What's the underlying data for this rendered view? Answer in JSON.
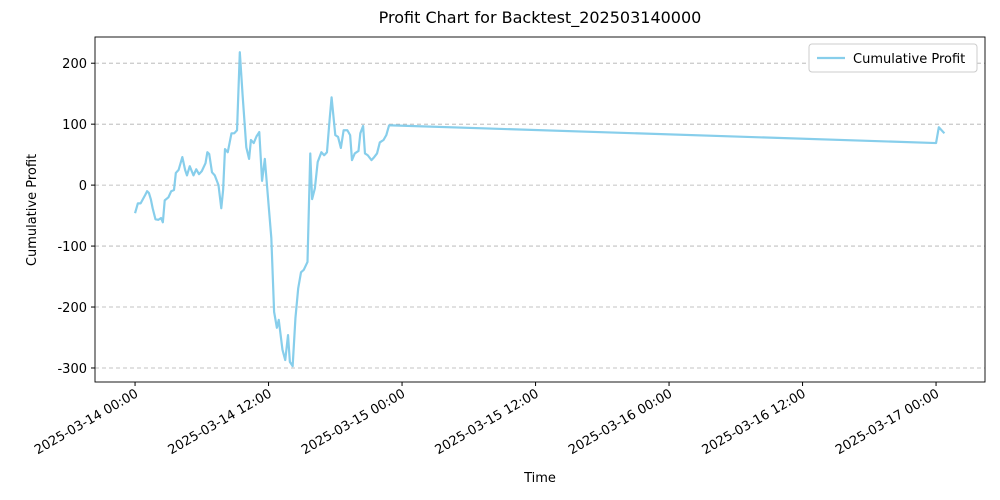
{
  "chart_data": {
    "type": "line",
    "title": "Profit Chart for Backtest_202503140000",
    "x_label": "Time",
    "y_label": "Cumulative Profit",
    "x": [
      "2025-03-14 00:00",
      "2025-03-14 00:15",
      "2025-03-14 00:30",
      "2025-03-14 00:55",
      "2025-03-14 01:05",
      "2025-03-14 01:15",
      "2025-03-14 01:25",
      "2025-03-14 01:35",
      "2025-03-14 01:50",
      "2025-03-14 02:05",
      "2025-03-14 02:20",
      "2025-03-14 02:30",
      "2025-03-14 02:40",
      "2025-03-14 03:00",
      "2025-03-14 03:15",
      "2025-03-14 03:30",
      "2025-03-14 03:40",
      "2025-03-14 03:55",
      "2025-03-14 04:15",
      "2025-03-14 04:30",
      "2025-03-14 04:40",
      "2025-03-14 04:55",
      "2025-03-14 05:15",
      "2025-03-14 05:30",
      "2025-03-14 05:45",
      "2025-03-14 06:00",
      "2025-03-14 06:20",
      "2025-03-14 06:30",
      "2025-03-14 06:40",
      "2025-03-14 06:55",
      "2025-03-14 07:10",
      "2025-03-14 07:30",
      "2025-03-14 07:45",
      "2025-03-14 07:55",
      "2025-03-14 08:05",
      "2025-03-14 08:20",
      "2025-03-14 08:40",
      "2025-03-14 08:55",
      "2025-03-14 09:10",
      "2025-03-14 09:25",
      "2025-03-14 09:40",
      "2025-03-14 10:00",
      "2025-03-14 10:15",
      "2025-03-14 10:25",
      "2025-03-14 10:40",
      "2025-03-14 10:55",
      "2025-03-14 11:10",
      "2025-03-14 11:25",
      "2025-03-14 11:40",
      "2025-03-14 11:55",
      "2025-03-14 12:15",
      "2025-03-14 12:30",
      "2025-03-14 12:45",
      "2025-03-14 12:55",
      "2025-03-14 13:15",
      "2025-03-14 13:30",
      "2025-03-14 13:45",
      "2025-03-14 13:55",
      "2025-03-14 14:10",
      "2025-03-14 14:25",
      "2025-03-14 14:40",
      "2025-03-14 14:55",
      "2025-03-14 15:10",
      "2025-03-14 15:30",
      "2025-03-14 15:45",
      "2025-03-14 15:55",
      "2025-03-14 16:10",
      "2025-03-14 16:25",
      "2025-03-14 16:45",
      "2025-03-14 17:00",
      "2025-03-14 17:15",
      "2025-03-14 17:30",
      "2025-03-14 17:40",
      "2025-03-14 18:00",
      "2025-03-14 18:15",
      "2025-03-14 18:30",
      "2025-03-14 18:45",
      "2025-03-14 19:05",
      "2025-03-14 19:20",
      "2025-03-14 19:30",
      "2025-03-14 19:45",
      "2025-03-14 20:05",
      "2025-03-14 20:15",
      "2025-03-14 20:30",
      "2025-03-14 20:40",
      "2025-03-14 20:55",
      "2025-03-14 21:15",
      "2025-03-14 21:30",
      "2025-03-14 21:45",
      "2025-03-14 22:00",
      "2025-03-14 22:20",
      "2025-03-14 22:35",
      "2025-03-14 22:50",
      "2025-03-14 23:05",
      "2025-03-17 00:00",
      "2025-03-17 00:15",
      "2025-03-17 00:45"
    ],
    "series": [
      {
        "name": "Cumulative Profit",
        "color": "#87ceeb",
        "values": [
          -46,
          -30,
          -30,
          -16,
          -10,
          -13,
          -23,
          -38,
          -56,
          -57,
          -54,
          -61,
          -25,
          -20,
          -10,
          -8,
          20,
          25,
          46,
          25,
          16,
          31,
          16,
          26,
          18,
          23,
          36,
          54,
          51,
          21,
          16,
          0,
          -38,
          -8,
          59,
          54,
          85,
          85,
          90,
          218,
          148,
          62,
          43,
          74,
          69,
          80,
          87,
          7,
          43,
          -13,
          -87,
          -208,
          -234,
          -221,
          -270,
          -287,
          -246,
          -290,
          -297,
          -218,
          -169,
          -143,
          -139,
          -126,
          52,
          -23,
          -5,
          38,
          54,
          49,
          54,
          110,
          144,
          82,
          79,
          61,
          90,
          90,
          82,
          41,
          52,
          56,
          85,
          97,
          52,
          49,
          41,
          46,
          52,
          70,
          74,
          82,
          98,
          98,
          69,
          95,
          85
        ]
      }
    ],
    "xlim": [
      "2025-03-13 20:24",
      "2025-03-17 04:24"
    ],
    "xticks": [
      "2025-03-14 00:00",
      "2025-03-14 12:00",
      "2025-03-15 00:00",
      "2025-03-15 12:00",
      "2025-03-16 00:00",
      "2025-03-16 12:00",
      "2025-03-17 00:00"
    ],
    "ylim": [
      -323,
      243
    ],
    "yticks": [
      -300,
      -200,
      -100,
      0,
      100,
      200
    ],
    "grid": "y",
    "legend": "upper right"
  }
}
